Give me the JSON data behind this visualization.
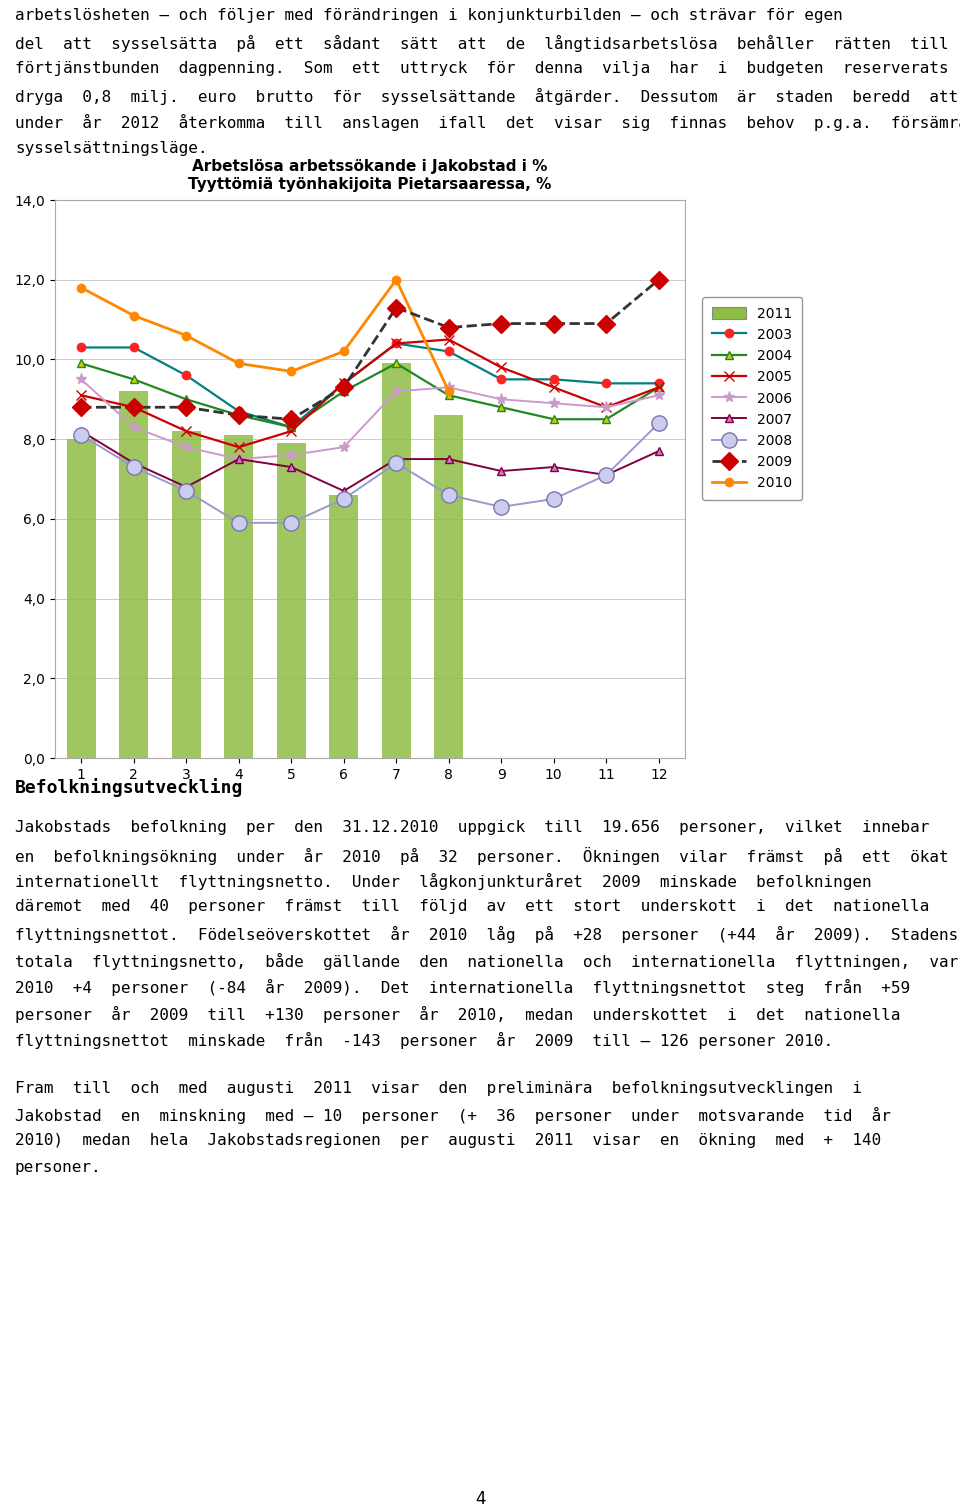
{
  "title_line1": "Arbetslösa arbetssökande i Jakobstad i %",
  "title_line2": "Tyyttömiä työnhakijoita Pietarsaaressa, %",
  "months": [
    1,
    2,
    3,
    4,
    5,
    6,
    7,
    8,
    9,
    10,
    11,
    12
  ],
  "ylim": [
    0.0,
    14.0
  ],
  "yticks": [
    0.0,
    2.0,
    4.0,
    6.0,
    8.0,
    10.0,
    12.0,
    14.0
  ],
  "bar_data": [
    8.0,
    9.2,
    8.2,
    8.1,
    7.9,
    6.6,
    9.9,
    8.6,
    null,
    null,
    null,
    null
  ],
  "bar_color": "#8fbc45",
  "series": {
    "2003": {
      "data": [
        10.3,
        10.3,
        9.6,
        8.7,
        8.3,
        9.4,
        10.4,
        10.2,
        9.5,
        9.5,
        9.4,
        9.4
      ],
      "color": "#008080",
      "marker": "o",
      "linestyle": "-",
      "linewidth": 1.6,
      "markersize": 6,
      "markerfacecolor": "#ff2222",
      "markeredgecolor": "#ff2222"
    },
    "2004": {
      "data": [
        9.9,
        9.5,
        9.0,
        8.6,
        8.3,
        9.2,
        9.9,
        9.1,
        8.8,
        8.5,
        8.5,
        9.3
      ],
      "color": "#228822",
      "marker": "^",
      "linestyle": "-",
      "linewidth": 1.6,
      "markersize": 6,
      "markerfacecolor": "#cccc00",
      "markeredgecolor": "#228822"
    },
    "2005": {
      "data": [
        9.1,
        8.8,
        8.2,
        7.8,
        8.2,
        9.4,
        10.4,
        10.5,
        9.8,
        9.3,
        8.8,
        9.3
      ],
      "color": "#cc0000",
      "marker": "x",
      "linestyle": "-",
      "linewidth": 1.6,
      "markersize": 7,
      "markerfacecolor": "#cc0000",
      "markeredgecolor": "#cc0000"
    },
    "2006": {
      "data": [
        9.5,
        8.3,
        7.8,
        7.5,
        7.6,
        7.8,
        9.2,
        9.3,
        9.0,
        8.9,
        8.8,
        9.1
      ],
      "color": "#cc99cc",
      "marker": "*",
      "linestyle": "-",
      "linewidth": 1.4,
      "markersize": 8,
      "markerfacecolor": "#cc99cc",
      "markeredgecolor": "#cc99cc"
    },
    "2007": {
      "data": [
        8.2,
        7.4,
        6.8,
        7.5,
        7.3,
        6.7,
        7.5,
        7.5,
        7.2,
        7.3,
        7.1,
        7.7
      ],
      "color": "#800040",
      "marker": "^",
      "linestyle": "-",
      "linewidth": 1.4,
      "markersize": 6,
      "markerfacecolor": "#cc77cc",
      "markeredgecolor": "#800040"
    },
    "2008": {
      "data": [
        8.1,
        7.3,
        6.7,
        5.9,
        5.9,
        6.5,
        7.4,
        6.6,
        6.3,
        6.5,
        7.1,
        8.4
      ],
      "color": "#9999cc",
      "marker": "o",
      "linestyle": "-",
      "linewidth": 1.4,
      "markersize": 11,
      "markerfacecolor": "#ccccee",
      "markeredgecolor": "#7777aa"
    },
    "2009": {
      "data": [
        8.8,
        8.8,
        8.8,
        8.6,
        8.5,
        9.3,
        11.3,
        10.8,
        10.9,
        10.9,
        10.9,
        12.0
      ],
      "color": "#333333",
      "marker": "D",
      "linestyle": "--",
      "linewidth": 2.0,
      "markersize": 9,
      "markerfacecolor": "#cc0000",
      "markeredgecolor": "#cc0000"
    },
    "2010": {
      "data": [
        11.8,
        11.1,
        10.6,
        9.9,
        9.7,
        10.2,
        12.0,
        9.2,
        null,
        null,
        null,
        null
      ],
      "color": "#ff8800",
      "marker": "o",
      "linestyle": "-",
      "linewidth": 2.0,
      "markersize": 6,
      "markerfacecolor": "#ff8800",
      "markeredgecolor": "#ff8800"
    }
  },
  "text_above_lines": [
    "arbetslösheten – och följer med förändringen i konjunkturbilden – och strävar för egen",
    "del  att  sysselsätta  på  ett  sådant  sätt  att  de  långtidsarbetslösa  behåller  rätten  till",
    "förtjänstbunden  dagpenning.  Som  ett  uttryck  för  denna  vilja  har  i  budgeten  reserverats",
    "dryga  0,8  milj.  euro  brutto  för  sysselsättande  åtgärder.  Dessutom  är  staden  beredd  att",
    "under  år  2012  återkomma  till  anslagen  ifall  det  visar  sig  finnas  behov  p.g.a.  försämrade",
    "sysselsättningsläge."
  ],
  "text_below_heading": "Befolkningsutveckling",
  "text_below_body_lines": [
    "Jakobstads  befolkning  per  den  31.12.2010  uppgick  till  19.656  personer,  vilket  innebar",
    "en  befolkningsökning  under  år  2010  på  32  personer.  Ökningen  vilar  främst  på  ett  ökat",
    "internationellt  flyttningsnetto.  Under  lågkonjunkturåret  2009  minskade  befolkningen",
    "däremot  med  40  personer  främst  till  följd  av  ett  stort  underskott  i  det  nationella",
    "flyttningsnettot.  Födelseöverskottet  år  2010  låg  på  +28  personer  (+44  år  2009).  Stadens",
    "totala  flyttningsnetto,  både  gällande  den  nationella  och  internationella  flyttningen,  var  år",
    "2010  +4  personer  (-84  år  2009).  Det  internationella  flyttningsnettot  steg  från  +59",
    "personer  år  2009  till  +130  personer  år  2010,  medan  underskottet  i  det  nationella",
    "flyttningsnettot  minskade  från  -143  personer  år  2009  till – 126 personer 2010."
  ],
  "text_below_body2_lines": [
    "Fram  till  och  med  augusti  2011  visar  den  preliminära  befolkningsutvecklingen  i",
    "Jakobstad  en  minskning  med – 10  personer  (+  36  personer  under  motsvarande  tid  år",
    "2010)  medan  hela  Jakobstadsregionen  per  augusti  2011  visar  en  ökning  med  +  140",
    "personer."
  ],
  "page_number": "4",
  "font_family": "DejaVu Sans Mono",
  "font_size_body": 11.5,
  "font_size_heading": 13.0,
  "chart_border_color": "#aaaaaa",
  "grid_color": "#cccccc"
}
